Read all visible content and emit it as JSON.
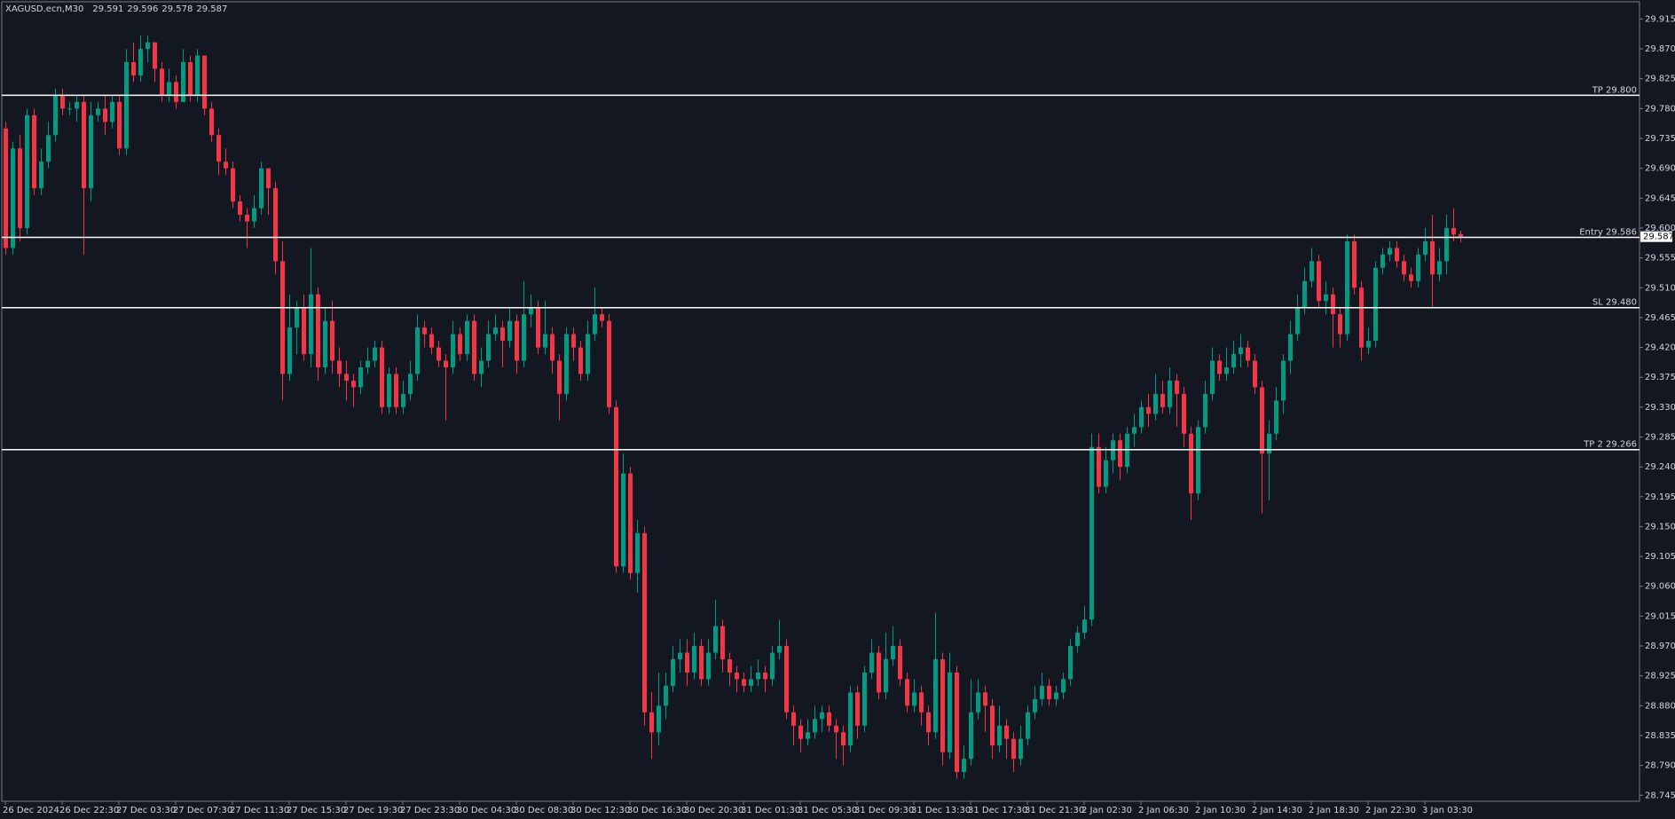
{
  "chart_data": {
    "type": "candlestick",
    "symbol": "XAGUSD.ecn,M30",
    "background": "#131722",
    "axis_color": "#d1d4dc",
    "up_color": "#089981",
    "down_color": "#f23645",
    "level_color": "#ffffff",
    "categories": [
      "26 Dec 2024",
      null,
      null,
      null,
      null,
      null,
      null,
      null,
      "26 Dec 22:30",
      null,
      null,
      null,
      null,
      null,
      null,
      null,
      "27 Dec 03:30",
      null,
      null,
      null,
      null,
      null,
      null,
      null,
      "27 Dec 07:30",
      null,
      null,
      null,
      null,
      null,
      null,
      null,
      "27 Dec 11:30",
      null,
      null,
      null,
      null,
      null,
      null,
      null,
      "27 Dec 15:30",
      null,
      null,
      null,
      null,
      null,
      null,
      null,
      "27 Dec 19:30",
      null,
      null,
      null,
      null,
      null,
      null,
      null,
      "27 Dec 23:30",
      null,
      null,
      null,
      null,
      null,
      null,
      null,
      "30 Dec 04:30",
      null,
      null,
      null,
      null,
      null,
      null,
      null,
      "30 Dec 08:30",
      null,
      null,
      null,
      null,
      null,
      null,
      null,
      "30 Dec 12:30",
      null,
      null,
      null,
      null,
      null,
      null,
      null,
      "30 Dec 16:30",
      null,
      null,
      null,
      null,
      null,
      null,
      null,
      "30 Dec 20:30",
      null,
      null,
      null,
      null,
      null,
      null,
      null,
      "31 Dec 01:30",
      null,
      null,
      null,
      null,
      null,
      null,
      null,
      "31 Dec 05:30",
      null,
      null,
      null,
      null,
      null,
      null,
      null,
      "31 Dec 09:30",
      null,
      null,
      null,
      null,
      null,
      null,
      null,
      "31 Dec 13:30",
      null,
      null,
      null,
      null,
      null,
      null,
      null,
      "31 Dec 17:30",
      null,
      null,
      null,
      null,
      null,
      null,
      null,
      "31 Dec 21:30",
      null,
      null,
      null,
      null,
      null,
      null,
      null,
      "2 Jan 02:30",
      null,
      null,
      null,
      null,
      null,
      null,
      null,
      "2 Jan 06:30",
      null,
      null,
      null,
      null,
      null,
      null,
      null,
      "2 Jan 10:30",
      null,
      null,
      null,
      null,
      null,
      null,
      null,
      "2 Jan 14:30",
      null,
      null,
      null,
      null,
      null,
      null,
      null,
      "2 Jan 18:30",
      null,
      null,
      null,
      null,
      null,
      null,
      null,
      "2 Jan 22:30",
      null,
      null,
      null,
      null,
      null,
      null,
      null,
      "3 Jan 03:30",
      null,
      null,
      null,
      null,
      null
    ],
    "open": [
      29.75,
      29.57,
      29.72,
      29.6,
      29.77,
      29.66,
      29.7,
      29.74,
      29.8,
      29.78,
      29.78,
      29.79,
      29.66,
      29.77,
      29.78,
      29.76,
      29.79,
      29.72,
      29.85,
      29.83,
      29.87,
      29.88,
      29.84,
      29.8,
      29.82,
      29.79,
      29.85,
      29.8,
      29.86,
      29.78,
      29.74,
      29.7,
      29.69,
      29.64,
      29.62,
      29.61,
      29.63,
      29.69,
      29.66,
      29.55,
      29.38,
      29.45,
      29.48,
      29.41,
      29.5,
      29.39,
      29.46,
      29.4,
      29.38,
      29.37,
      29.36,
      29.39,
      29.4,
      29.42,
      29.33,
      29.38,
      29.33,
      29.35,
      29.38,
      29.45,
      29.44,
      29.42,
      29.4,
      29.39,
      29.44,
      29.41,
      29.46,
      29.38,
      29.4,
      29.44,
      29.45,
      29.43,
      29.46,
      29.4,
      29.47,
      29.48,
      29.42,
      29.44,
      29.4,
      29.35,
      29.44,
      29.42,
      29.38,
      29.44,
      29.47,
      29.46,
      29.33,
      29.09,
      29.23,
      29.08,
      29.14,
      28.87,
      28.84,
      28.88,
      28.91,
      28.95,
      28.96,
      28.93,
      28.97,
      28.92,
      28.96,
      29.0,
      28.95,
      28.93,
      28.92,
      28.91,
      28.92,
      28.93,
      28.92,
      28.96,
      28.97,
      28.87,
      28.85,
      28.83,
      28.84,
      28.86,
      28.87,
      28.85,
      28.84,
      28.82,
      28.9,
      28.85,
      28.93,
      28.96,
      28.9,
      28.95,
      28.97,
      28.92,
      28.88,
      28.9,
      28.87,
      28.84,
      28.95,
      28.81,
      28.93,
      28.78,
      28.8,
      28.87,
      28.9,
      28.88,
      28.82,
      28.85,
      28.83,
      28.8,
      28.83,
      28.87,
      28.89,
      28.91,
      28.89,
      28.9,
      28.92,
      28.97,
      28.99,
      29.01,
      29.27,
      29.21,
      29.25,
      29.28,
      29.24,
      29.29,
      29.3,
      29.33,
      29.32,
      29.35,
      29.33,
      29.37,
      29.35,
      29.29,
      29.2,
      29.3,
      29.35,
      29.4,
      29.38,
      29.39,
      29.41,
      29.42,
      29.4,
      29.36,
      29.26,
      29.29,
      29.34,
      29.4,
      29.44,
      29.48,
      29.52,
      29.55,
      29.49,
      29.5,
      29.47,
      29.44,
      29.58,
      29.51,
      29.42,
      29.43,
      29.54,
      29.56,
      29.57,
      29.55,
      29.53,
      29.52,
      29.56,
      29.58,
      29.53,
      29.55,
      29.6,
      29.591
    ],
    "high": [
      29.76,
      29.73,
      29.74,
      29.78,
      29.78,
      29.72,
      29.76,
      29.81,
      29.81,
      29.79,
      29.8,
      29.8,
      29.79,
      29.79,
      29.8,
      29.8,
      29.8,
      29.87,
      29.88,
      29.89,
      29.89,
      29.88,
      29.85,
      29.84,
      29.83,
      29.87,
      29.86,
      29.87,
      29.86,
      29.79,
      29.75,
      29.72,
      29.7,
      29.65,
      29.63,
      29.65,
      29.7,
      29.69,
      29.67,
      29.58,
      29.5,
      29.49,
      29.5,
      29.57,
      29.51,
      29.48,
      29.49,
      29.42,
      29.4,
      29.38,
      29.4,
      29.42,
      29.43,
      29.43,
      29.39,
      29.39,
      29.37,
      29.4,
      29.47,
      29.46,
      29.45,
      29.43,
      29.41,
      29.46,
      29.45,
      29.47,
      29.47,
      29.42,
      29.46,
      29.47,
      29.46,
      29.48,
      29.47,
      29.52,
      29.5,
      29.49,
      29.49,
      29.45,
      29.41,
      29.45,
      29.45,
      29.43,
      29.46,
      29.51,
      29.48,
      29.47,
      29.34,
      29.26,
      29.24,
      29.16,
      29.15,
      28.9,
      28.93,
      28.93,
      28.97,
      28.98,
      28.98,
      28.99,
      28.98,
      28.98,
      29.04,
      29.01,
      28.96,
      28.94,
      28.93,
      28.94,
      28.95,
      28.94,
      28.97,
      29.01,
      28.98,
      28.88,
      28.86,
      28.86,
      28.88,
      28.88,
      28.88,
      28.86,
      28.85,
      28.91,
      28.91,
      28.94,
      28.98,
      28.97,
      28.99,
      29.0,
      28.98,
      28.93,
      28.92,
      28.91,
      28.88,
      29.02,
      28.96,
      28.96,
      28.94,
      28.82,
      28.92,
      28.92,
      28.91,
      28.89,
      28.88,
      28.86,
      28.84,
      28.85,
      28.88,
      28.91,
      28.93,
      28.92,
      28.91,
      28.93,
      28.98,
      29.0,
      29.03,
      29.29,
      29.29,
      29.27,
      29.29,
      29.29,
      29.3,
      29.32,
      29.34,
      29.35,
      29.38,
      29.37,
      29.39,
      29.38,
      29.36,
      29.3,
      29.31,
      29.37,
      29.42,
      29.41,
      29.42,
      29.43,
      29.44,
      29.43,
      29.41,
      29.37,
      29.31,
      29.36,
      29.41,
      29.46,
      29.5,
      29.54,
      29.57,
      29.56,
      29.52,
      29.51,
      29.48,
      29.59,
      29.59,
      29.52,
      29.45,
      29.55,
      29.57,
      29.58,
      29.58,
      29.56,
      29.54,
      29.57,
      29.6,
      29.62,
      29.57,
      29.62,
      29.63,
      29.596
    ],
    "low": [
      29.56,
      29.56,
      29.58,
      29.59,
      29.65,
      29.65,
      29.69,
      29.73,
      29.77,
      29.77,
      29.76,
      29.56,
      29.64,
      29.76,
      29.74,
      29.75,
      29.71,
      29.71,
      29.82,
      29.82,
      29.85,
      29.82,
      29.79,
      29.79,
      29.78,
      29.79,
      29.79,
      29.79,
      29.77,
      29.73,
      29.68,
      29.68,
      29.63,
      29.61,
      29.57,
      29.6,
      29.62,
      29.62,
      29.53,
      29.34,
      29.37,
      29.41,
      29.4,
      29.39,
      29.37,
      29.38,
      29.38,
      29.36,
      29.34,
      29.33,
      29.35,
      29.38,
      29.39,
      29.32,
      29.32,
      29.32,
      29.32,
      29.34,
      29.37,
      29.42,
      29.41,
      29.39,
      29.31,
      29.38,
      29.4,
      29.4,
      29.37,
      29.36,
      29.39,
      29.43,
      29.39,
      29.42,
      29.38,
      29.39,
      29.45,
      29.41,
      29.41,
      29.38,
      29.31,
      29.34,
      29.4,
      29.37,
      29.37,
      29.43,
      29.45,
      29.32,
      29.08,
      29.08,
      29.07,
      29.05,
      28.85,
      28.8,
      28.82,
      28.86,
      28.9,
      28.93,
      28.91,
      28.92,
      28.91,
      28.91,
      28.95,
      28.93,
      28.91,
      28.9,
      28.9,
      28.9,
      28.91,
      28.9,
      28.91,
      28.95,
      28.86,
      28.82,
      28.81,
      28.82,
      28.83,
      28.84,
      28.84,
      28.8,
      28.79,
      28.81,
      28.83,
      28.84,
      28.92,
      28.89,
      28.89,
      28.94,
      28.91,
      28.87,
      28.87,
      28.85,
      28.82,
      28.83,
      28.79,
      28.8,
      28.77,
      28.77,
      28.79,
      28.86,
      28.84,
      28.8,
      28.81,
      28.8,
      28.78,
      28.79,
      28.82,
      28.86,
      28.88,
      28.88,
      28.88,
      28.89,
      28.91,
      28.96,
      28.98,
      29.0,
      29.2,
      29.2,
      29.23,
      29.22,
      29.23,
      29.27,
      29.29,
      29.3,
      29.31,
      29.32,
      29.32,
      29.3,
      29.27,
      29.16,
      29.19,
      29.29,
      29.34,
      29.37,
      29.37,
      29.38,
      29.39,
      29.39,
      29.35,
      29.17,
      29.19,
      29.28,
      29.32,
      29.38,
      29.43,
      29.47,
      29.51,
      29.48,
      29.47,
      29.42,
      29.42,
      29.43,
      29.5,
      29.4,
      29.41,
      29.42,
      29.53,
      29.55,
      29.54,
      29.52,
      29.51,
      29.51,
      29.55,
      29.48,
      29.52,
      29.53,
      29.58,
      29.578
    ],
    "close": [
      29.57,
      29.72,
      29.6,
      29.77,
      29.66,
      29.7,
      29.74,
      29.8,
      29.78,
      29.78,
      29.79,
      29.66,
      29.77,
      29.78,
      29.76,
      29.79,
      29.72,
      29.85,
      29.83,
      29.87,
      29.88,
      29.84,
      29.8,
      29.82,
      29.79,
      29.85,
      29.8,
      29.86,
      29.78,
      29.74,
      29.7,
      29.69,
      29.64,
      29.62,
      29.61,
      29.63,
      29.69,
      29.66,
      29.55,
      29.38,
      29.45,
      29.48,
      29.41,
      29.5,
      29.39,
      29.46,
      29.4,
      29.38,
      29.37,
      29.36,
      29.39,
      29.4,
      29.42,
      29.33,
      29.38,
      29.33,
      29.35,
      29.38,
      29.45,
      29.44,
      29.42,
      29.4,
      29.39,
      29.44,
      29.41,
      29.46,
      29.38,
      29.4,
      29.44,
      29.45,
      29.43,
      29.46,
      29.4,
      29.47,
      29.48,
      29.42,
      29.44,
      29.4,
      29.35,
      29.44,
      29.42,
      29.38,
      29.44,
      29.47,
      29.46,
      29.33,
      29.09,
      29.23,
      29.08,
      29.14,
      28.87,
      28.84,
      28.88,
      28.91,
      28.95,
      28.96,
      28.93,
      28.97,
      28.92,
      28.96,
      29.0,
      28.95,
      28.93,
      28.92,
      28.91,
      28.92,
      28.93,
      28.92,
      28.96,
      28.97,
      28.87,
      28.85,
      28.83,
      28.84,
      28.86,
      28.87,
      28.85,
      28.84,
      28.82,
      28.9,
      28.85,
      28.93,
      28.96,
      28.9,
      28.95,
      28.97,
      28.92,
      28.88,
      28.9,
      28.87,
      28.84,
      28.95,
      28.81,
      28.93,
      28.78,
      28.8,
      28.87,
      28.9,
      28.88,
      28.82,
      28.85,
      28.83,
      28.8,
      28.83,
      28.87,
      28.89,
      28.91,
      28.89,
      28.9,
      28.92,
      28.97,
      28.99,
      29.01,
      29.27,
      29.21,
      29.25,
      29.28,
      29.24,
      29.29,
      29.3,
      29.33,
      29.32,
      29.35,
      29.33,
      29.37,
      29.35,
      29.29,
      29.2,
      29.3,
      29.35,
      29.4,
      29.38,
      29.39,
      29.41,
      29.42,
      29.4,
      29.36,
      29.26,
      29.29,
      29.34,
      29.4,
      29.44,
      29.48,
      29.52,
      29.55,
      29.49,
      29.5,
      29.47,
      29.44,
      29.58,
      29.51,
      29.42,
      29.43,
      29.54,
      29.56,
      29.57,
      29.55,
      29.53,
      29.52,
      29.56,
      29.58,
      29.53,
      29.55,
      29.6,
      29.59,
      29.587
    ],
    "levels": [
      {
        "value": 29.8,
        "label": "TP 29.800"
      },
      {
        "value": 29.586,
        "label": "Entry 29.586"
      },
      {
        "value": 29.48,
        "label": "SL 29.480"
      },
      {
        "value": 29.266,
        "label": "TP 2 29.266"
      }
    ],
    "ylim": [
      28.736,
      29.941
    ],
    "yticks": [
      29.915,
      {
        "value": 29.87,
        "label": "29.870"
      },
      29.825,
      {
        "value": 29.78,
        "label": "29.780"
      },
      29.735,
      {
        "value": 29.69,
        "label": "29.690"
      },
      29.645,
      {
        "value": 29.6,
        "label": "29.600"
      },
      29.555,
      {
        "value": 29.51,
        "label": "29.510"
      },
      29.465,
      {
        "value": 29.42,
        "label": "29.420"
      },
      29.375,
      {
        "value": 29.33,
        "label": "29.330"
      },
      29.285,
      {
        "value": 29.24,
        "label": "29.240"
      },
      29.195,
      {
        "value": 29.15,
        "label": "29.150"
      },
      29.105,
      {
        "value": 29.06,
        "label": "29.060"
      },
      29.015,
      {
        "value": 28.97,
        "label": "28.970"
      },
      28.925,
      {
        "value": 28.88,
        "label": "28.880"
      },
      28.835,
      {
        "value": 28.79,
        "label": "28.790"
      },
      28.745
    ]
  }
}
